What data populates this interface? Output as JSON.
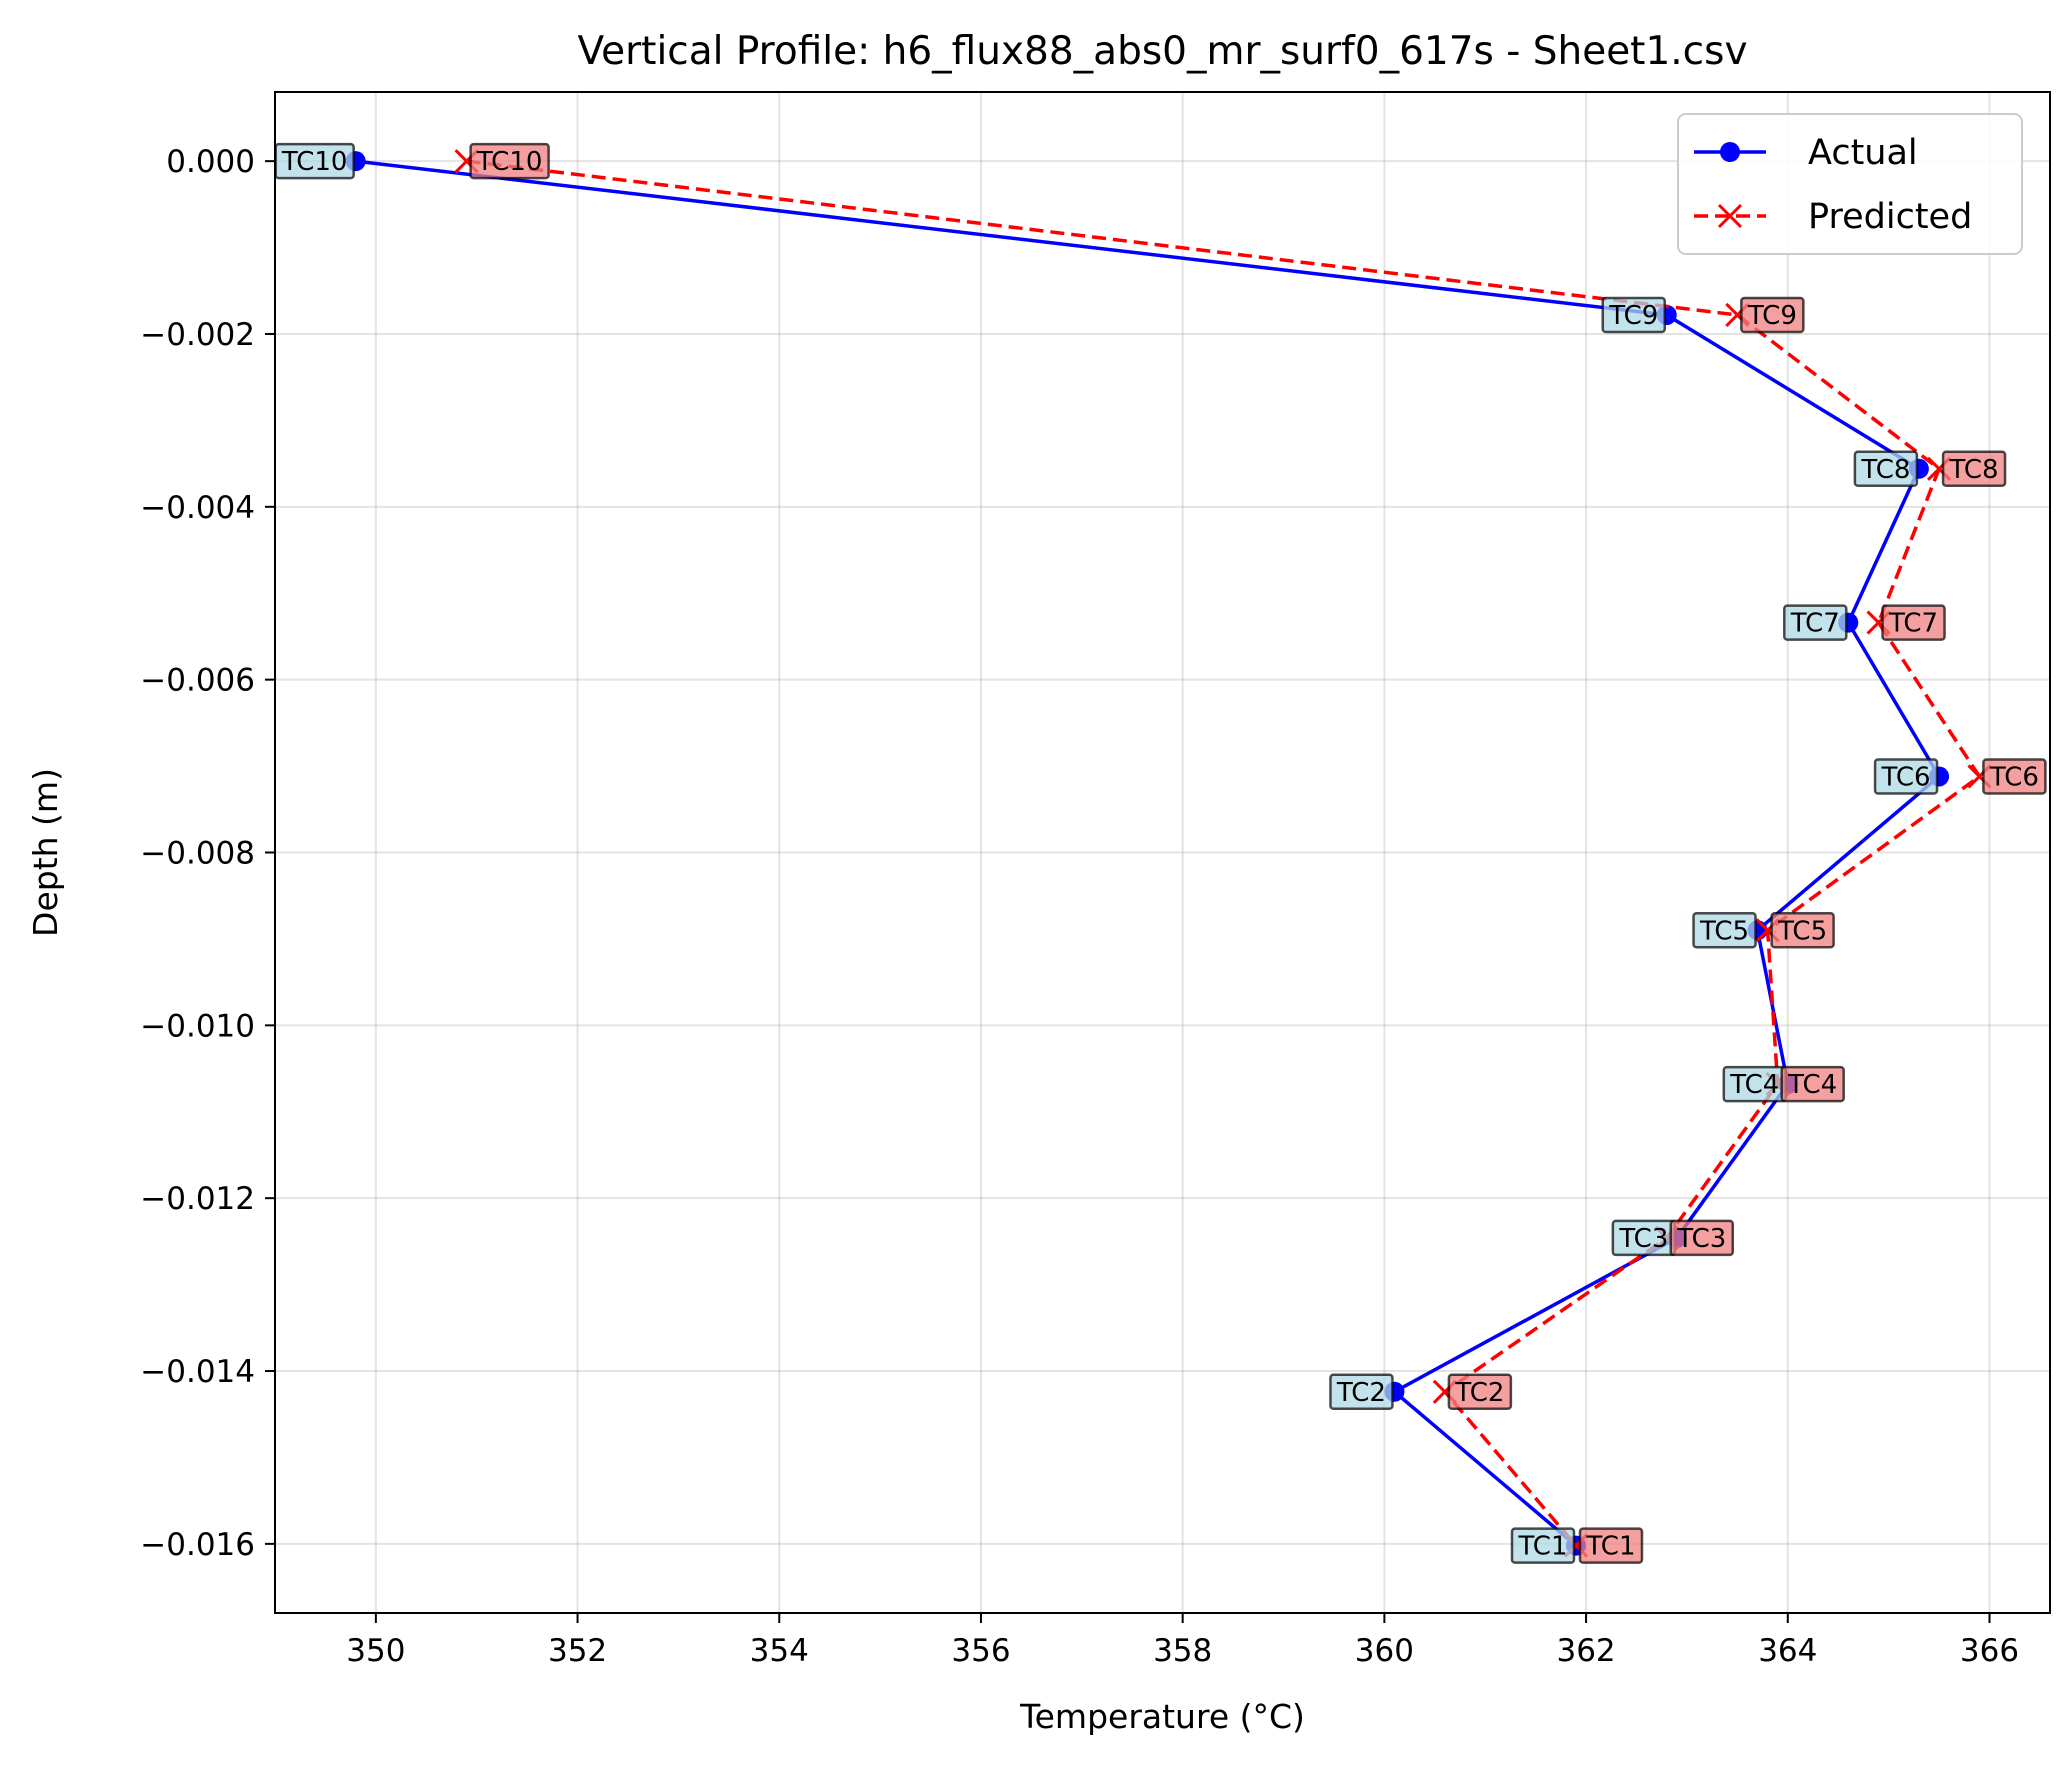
{
  "chart_data": {
    "type": "line",
    "title": "Vertical Profile: h6_flux88_abs0_mr_surf0_617s - Sheet1.csv",
    "xlabel": "Temperature (°C)",
    "ylabel": "Depth (m)",
    "xlim": [
      349.0,
      366.6
    ],
    "ylim": [
      -0.0168,
      0.0008
    ],
    "xticks": [
      350,
      352,
      354,
      356,
      358,
      360,
      362,
      364,
      366
    ],
    "xtick_labels": [
      "350",
      "352",
      "354",
      "356",
      "358",
      "360",
      "362",
      "364",
      "366"
    ],
    "yticks": [
      0.0,
      -0.002,
      -0.004,
      -0.006,
      -0.008,
      -0.01,
      -0.012,
      -0.014,
      -0.016
    ],
    "ytick_labels": [
      "0.000",
      "−0.002",
      "−0.004",
      "−0.006",
      "−0.008",
      "−0.010",
      "−0.012",
      "−0.014",
      "−0.016"
    ],
    "grid": true,
    "legend_position": "top-right",
    "series": [
      {
        "name": "Actual",
        "color": "#0000ff",
        "style": "solid",
        "marker": "circle",
        "label_color": "#add8e6",
        "labels": [
          "TC10",
          "TC9",
          "TC8",
          "TC7",
          "TC6",
          "TC5",
          "TC4",
          "TC3",
          "TC2",
          "TC1"
        ],
        "x": [
          349.8,
          362.8,
          365.3,
          364.6,
          365.5,
          363.7,
          364.0,
          362.9,
          360.1,
          361.9
        ],
        "y": [
          0.0,
          -0.00178,
          -0.00356,
          -0.00534,
          -0.00712,
          -0.0089,
          -0.01068,
          -0.01246,
          -0.01424,
          -0.01602
        ]
      },
      {
        "name": "Predicted",
        "color": "#ff0000",
        "style": "dashed",
        "marker": "x",
        "label_color": "#f08080",
        "labels": [
          "TC10",
          "TC9",
          "TC8",
          "TC7",
          "TC6",
          "TC5",
          "TC4",
          "TC3",
          "TC2",
          "TC1"
        ],
        "x": [
          350.9,
          363.5,
          365.5,
          364.9,
          365.9,
          363.8,
          363.9,
          362.8,
          360.6,
          361.9
        ],
        "y": [
          0.0,
          -0.00178,
          -0.00356,
          -0.00534,
          -0.00712,
          -0.0089,
          -0.01068,
          -0.01246,
          -0.01424,
          -0.01602
        ]
      }
    ]
  }
}
